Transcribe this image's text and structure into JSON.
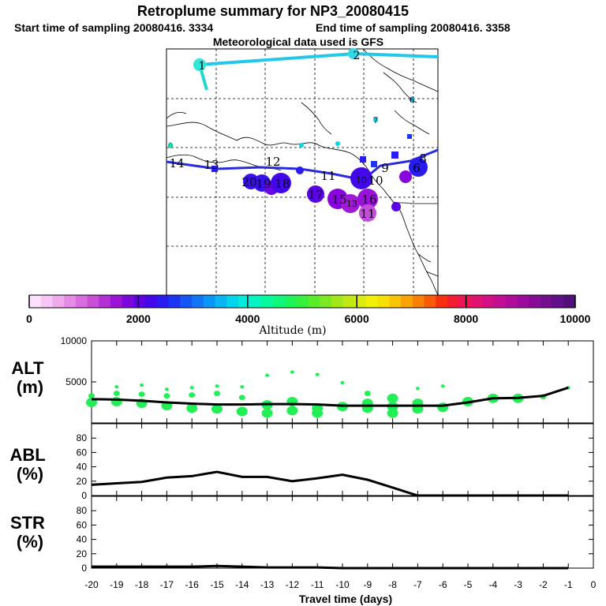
{
  "title": "Retroplume summary for NP3_20080415",
  "subtitle_start": "Start time of sampling 20080416.  3334",
  "subtitle_end": "End time of sampling 20080416.  3358",
  "subtitle_met": "Meteorological data used is GFS",
  "colors": {
    "track_upper": "#22c8e8",
    "track_lower": "#2a2ae0",
    "line": "#000000",
    "marker": "#22ee55"
  },
  "chart_data": [
    {
      "type": "map",
      "name": "retroplume-map",
      "description_label": "Retroplume positions",
      "upper_track_labels": [
        "1",
        "2"
      ],
      "lower_track_labels": [
        "14",
        "13",
        "12",
        "11",
        "10",
        "9",
        "8",
        "6"
      ],
      "cluster_labels": [
        "20",
        "19",
        "18",
        "17",
        "16",
        "15",
        "13",
        "11",
        "10",
        "7",
        "6",
        "0"
      ]
    },
    {
      "type": "colorbar",
      "name": "altitude-colorbar",
      "xlabel": "Altitude (m)",
      "range": [
        0,
        10000
      ],
      "tick_labels": [
        "0",
        "2000",
        "4000",
        "6000",
        "8000",
        "10000"
      ],
      "colors": [
        "#fde0fb",
        "#f7c6f5",
        "#efaaee",
        "#e68ce8",
        "#d96de0",
        "#c94ed8",
        "#b530d4",
        "#9b14d6",
        "#7d06dc",
        "#5f02e4",
        "#4208ea",
        "#2a1cf0",
        "#1a36f4",
        "#1456f6",
        "#0e76f6",
        "#0a96f6",
        "#08b6f4",
        "#06d4ec",
        "#06eadc",
        "#06f4c0",
        "#08f8a0",
        "#10f87c",
        "#1cf45a",
        "#36f03e",
        "#58ec2a",
        "#7ce820",
        "#a0e818",
        "#c0e812",
        "#dcec0e",
        "#f0f00a",
        "#f8e006",
        "#f8c404",
        "#f8a404",
        "#f88004",
        "#f85a06",
        "#f83010",
        "#f41c34",
        "#ec1654",
        "#e2126e",
        "#d40e84",
        "#c40e94",
        "#b00c9c",
        "#9c0c9c",
        "#880c96",
        "#740e8c",
        "#62108a",
        "#52107a"
      ]
    },
    {
      "type": "line",
      "name": "ALT",
      "ylabel": "ALT\n(m)",
      "ylim": [
        0,
        10000
      ],
      "yticks": [
        5000,
        10000
      ],
      "x": [
        -20,
        -19,
        -18,
        -17,
        -16,
        -15,
        -14,
        -13,
        -12,
        -11,
        -10,
        -9,
        -8,
        -7,
        -6,
        -5,
        -4,
        -3,
        -2,
        -1
      ],
      "values": [
        2900,
        2850,
        2700,
        2500,
        2350,
        2250,
        2250,
        2300,
        2300,
        2250,
        2100,
        2100,
        2100,
        2100,
        2100,
        2500,
        3000,
        3050,
        3300,
        4300
      ],
      "scatter": [
        {
          "x": -20,
          "y": 2500
        },
        {
          "x": -20,
          "y": 3300
        },
        {
          "x": -19,
          "y": 2600
        },
        {
          "x": -19,
          "y": 3600
        },
        {
          "x": -19,
          "y": 4400
        },
        {
          "x": -18,
          "y": 2400
        },
        {
          "x": -18,
          "y": 3500
        },
        {
          "x": -18,
          "y": 4600
        },
        {
          "x": -17,
          "y": 2100
        },
        {
          "x": -17,
          "y": 3300
        },
        {
          "x": -17,
          "y": 4100
        },
        {
          "x": -16,
          "y": 1800
        },
        {
          "x": -16,
          "y": 3400
        },
        {
          "x": -16,
          "y": 4300
        },
        {
          "x": -15,
          "y": 1700
        },
        {
          "x": -15,
          "y": 3600
        },
        {
          "x": -15,
          "y": 4500
        },
        {
          "x": -14,
          "y": 1400
        },
        {
          "x": -14,
          "y": 3100
        },
        {
          "x": -14,
          "y": 4400
        },
        {
          "x": -13,
          "y": 1200
        },
        {
          "x": -13,
          "y": 2200
        },
        {
          "x": -13,
          "y": 5800
        },
        {
          "x": -12,
          "y": 1500
        },
        {
          "x": -12,
          "y": 2600
        },
        {
          "x": -12,
          "y": 6200
        },
        {
          "x": -11,
          "y": 1200
        },
        {
          "x": -11,
          "y": 1800
        },
        {
          "x": -11,
          "y": 5900
        },
        {
          "x": -10,
          "y": 2000
        },
        {
          "x": -10,
          "y": 4900
        },
        {
          "x": -9,
          "y": 1800
        },
        {
          "x": -9,
          "y": 2400
        },
        {
          "x": -9,
          "y": 3600
        },
        {
          "x": -8,
          "y": 1200
        },
        {
          "x": -8,
          "y": 2000
        },
        {
          "x": -8,
          "y": 3000
        },
        {
          "x": -7,
          "y": 1700
        },
        {
          "x": -7,
          "y": 2400
        },
        {
          "x": -7,
          "y": 4200
        },
        {
          "x": -6,
          "y": 1900
        },
        {
          "x": -6,
          "y": 4500
        },
        {
          "x": -5,
          "y": 2600
        },
        {
          "x": -4,
          "y": 3000
        },
        {
          "x": -3,
          "y": 3000
        },
        {
          "x": -2,
          "y": 3200
        },
        {
          "x": -1,
          "y": 4300
        }
      ]
    },
    {
      "type": "line",
      "name": "ABL",
      "ylabel": "ABL\n(%)",
      "ylim": [
        0,
        100
      ],
      "yticks": [
        0,
        20,
        40,
        60,
        80
      ],
      "x": [
        -20,
        -19,
        -18,
        -17,
        -16,
        -15,
        -14,
        -13,
        -12,
        -11,
        -10,
        -9,
        -8,
        -7,
        -6,
        -5,
        -4,
        -3,
        -2,
        -1
      ],
      "values": [
        15,
        17,
        19,
        25,
        27,
        33,
        26,
        26,
        20,
        24,
        29,
        22,
        11,
        0,
        0,
        0,
        0,
        0,
        0,
        0
      ]
    },
    {
      "type": "line",
      "name": "STR",
      "ylabel": "STR\n(%)",
      "ylim": [
        0,
        100
      ],
      "yticks": [
        0,
        20,
        40,
        60,
        80
      ],
      "x": [
        -20,
        -19,
        -18,
        -17,
        -16,
        -15,
        -14,
        -13,
        -12,
        -11,
        -10,
        -9,
        -8,
        -7,
        -6,
        -5,
        -4,
        -3,
        -2,
        -1
      ],
      "values": [
        2,
        2,
        2,
        2,
        2,
        3,
        2,
        1,
        1,
        1,
        0,
        0,
        0,
        0,
        0,
        0,
        0,
        0,
        0,
        0
      ],
      "xlabel": "Travel time (days)",
      "xlim": [
        -20,
        0
      ],
      "xtick_labels": [
        "-20",
        "-19",
        "-18",
        "-17",
        "-16",
        "-15",
        "-14",
        "-13",
        "-12",
        "-11",
        "-10",
        "-9",
        "-8",
        "-7",
        "-6",
        "-5",
        "-4",
        "-3",
        "-2",
        "-1",
        "0"
      ]
    }
  ]
}
